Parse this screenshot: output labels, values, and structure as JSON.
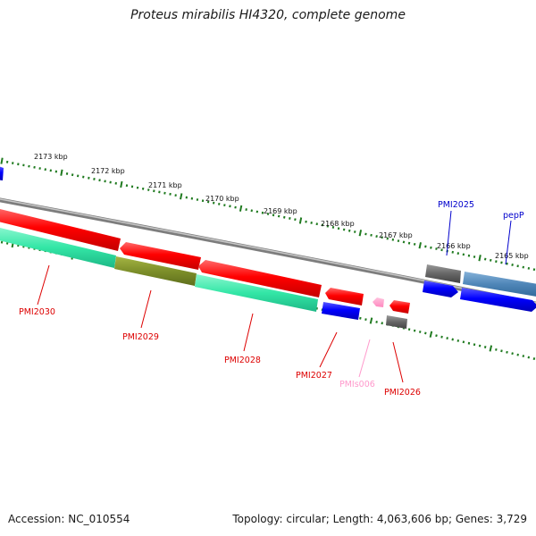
{
  "title": "Proteus mirabilis HI4320, complete genome",
  "footer": {
    "accession": "Accession: NC_010554",
    "stats": "Topology: circular; Length: 4,063,606 bp; Genes: 3,729"
  },
  "colors": {
    "backbone": "#8a8a8a",
    "tick": "#1f7a1f",
    "forward_cds": "#0000ee",
    "reverse_cds": "#ee0000",
    "rna": "#ff99cc",
    "pseudo": "#666666",
    "green_band": "#33e6a6",
    "olive_band": "#7d8f2a",
    "steel_band": "#4f86b8",
    "label_blue": "#0000cc",
    "label_red": "#dd0000",
    "label_pink": "#ff99cc"
  },
  "ruler": {
    "labels": [
      "2173 kbp",
      "2172 kbp",
      "2171 kbp",
      "2170 kbp",
      "2169 kbp",
      "2168 kbp",
      "2167 kbp",
      "2166 kbp",
      "2165 kbp"
    ]
  },
  "genes": [
    {
      "name": "PMI2025",
      "strand": "+",
      "color_key": "label_blue"
    },
    {
      "name": "pepP",
      "strand": "+",
      "color_key": "label_blue"
    },
    {
      "name": "PMI2030",
      "strand": "-",
      "color_key": "label_red"
    },
    {
      "name": "PMI2029",
      "strand": "-",
      "color_key": "label_red"
    },
    {
      "name": "PMI2028",
      "strand": "-",
      "color_key": "label_red"
    },
    {
      "name": "PMI2027",
      "strand": "-",
      "color_key": "label_red"
    },
    {
      "name": "PMIs006",
      "strand": "-",
      "color_key": "label_pink"
    },
    {
      "name": "PMI2026",
      "strand": "-",
      "color_key": "label_red"
    }
  ]
}
